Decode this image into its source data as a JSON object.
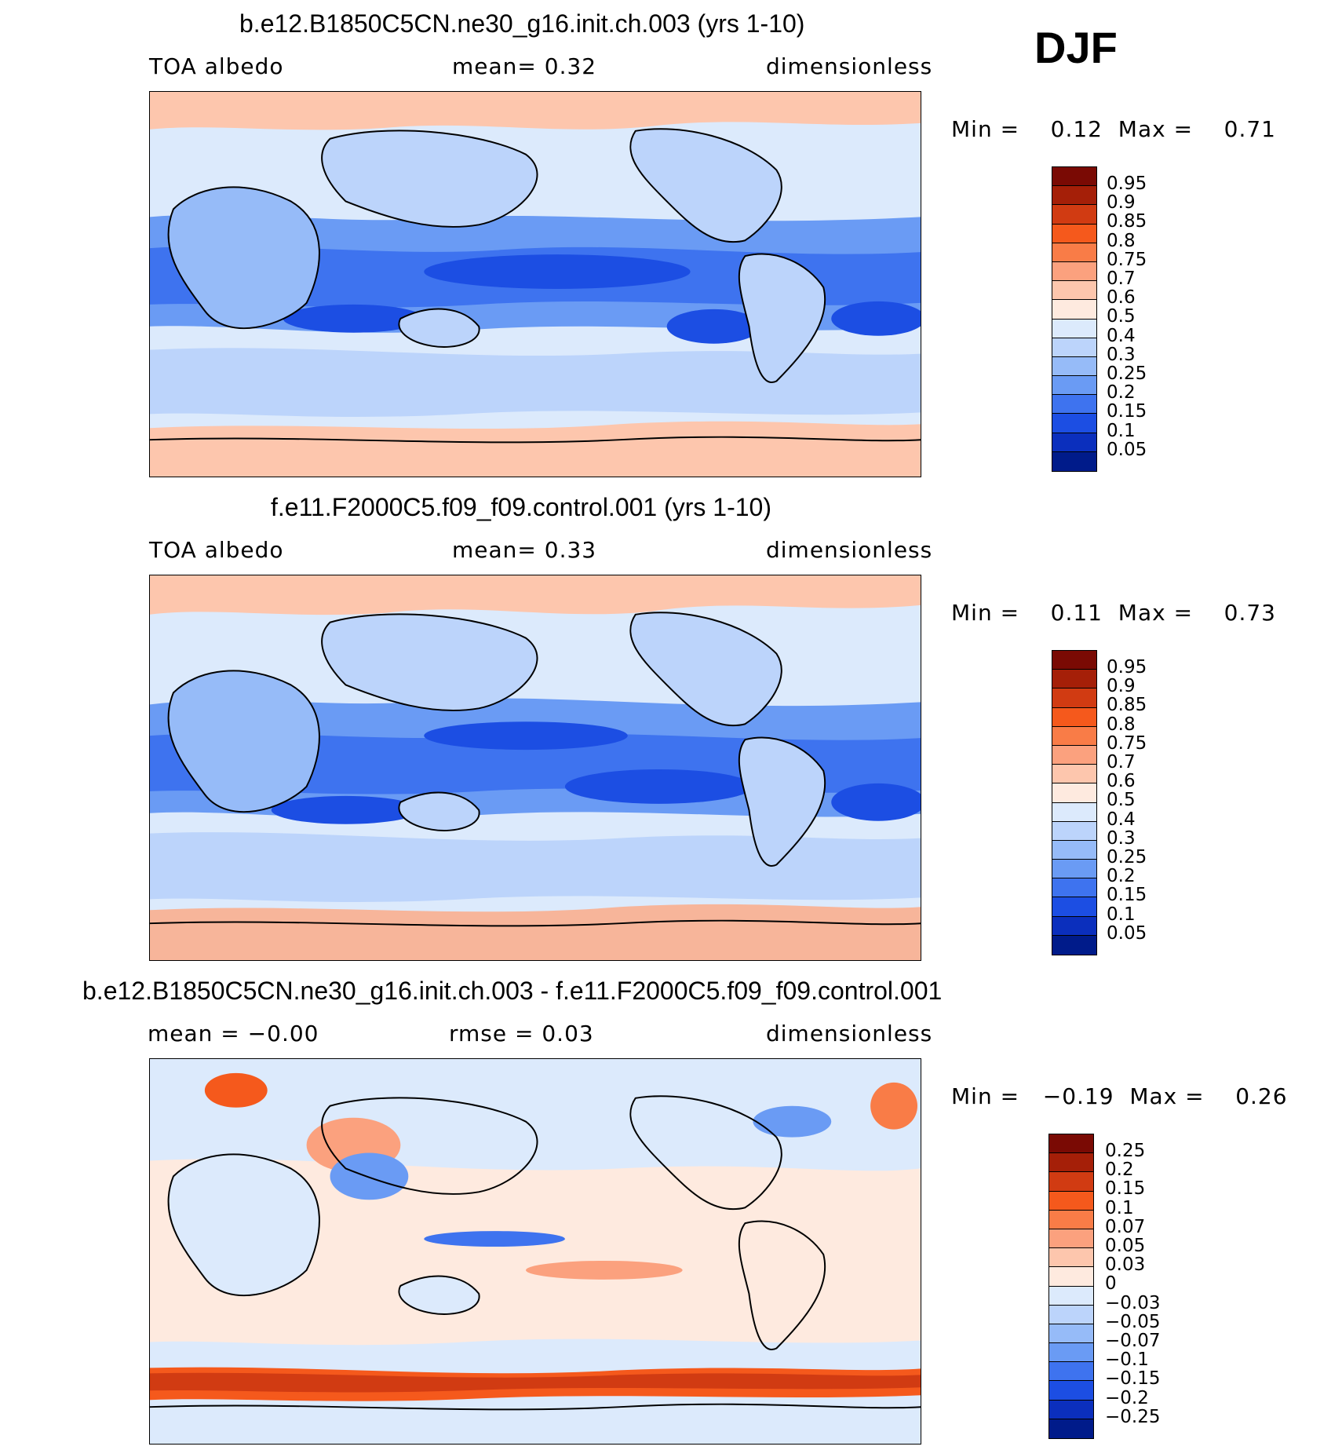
{
  "season": "DJF",
  "panels": [
    {
      "title": "b.e12.B1850C5CN.ne30_g16.init.ch.003 (yrs 1-10)",
      "variable": "TOA albedo",
      "mean_text": "mean=    0.32",
      "units": "dimensionless",
      "stats_text": "Min =    0.12  Max =    0.71",
      "colorbar_labels": [
        "0.95",
        "0.9",
        "0.85",
        "0.8",
        "0.75",
        "0.7",
        "0.6",
        "0.5",
        "0.4",
        "0.3",
        "0.25",
        "0.2",
        "0.15",
        "0.1",
        "0.05"
      ]
    },
    {
      "title": "f.e11.F2000C5.f09_f09.control.001 (yrs 1-10)",
      "variable": "TOA albedo",
      "mean_text": "mean=    0.33",
      "units": "dimensionless",
      "stats_text": "Min =    0.11  Max =    0.73",
      "colorbar_labels": [
        "0.95",
        "0.9",
        "0.85",
        "0.8",
        "0.75",
        "0.7",
        "0.6",
        "0.5",
        "0.4",
        "0.3",
        "0.25",
        "0.2",
        "0.15",
        "0.1",
        "0.05"
      ]
    },
    {
      "title": "b.e12.B1850C5CN.ne30_g16.init.ch.003 - f.e11.F2000C5.f09_f09.control.001",
      "variable": "mean =   −0.00",
      "mean_text": "rmse =    0.03",
      "units": "dimensionless",
      "stats_text": "Min =   −0.19  Max =    0.26",
      "colorbar_labels": [
        "0.25",
        "0.2",
        "0.15",
        "0.1",
        "0.07",
        "0.05",
        "0.03",
        "0",
        "−0.03",
        "−0.05",
        "−0.07",
        "−0.1",
        "−0.15",
        "−0.2",
        "−0.25"
      ]
    }
  ],
  "colors": {
    "colorbar": [
      "#7a0a04",
      "#a51f08",
      "#d13b12",
      "#f5591c",
      "#f97c47",
      "#fba17e",
      "#fdc6ad",
      "#feeadf",
      "#dceafc",
      "#bcd4fb",
      "#96bbf8",
      "#6a9bf4",
      "#3e73ef",
      "#1c4ee3",
      "#0b2fbd",
      "#001b8a"
    ],
    "ice_high": "#f7b59a",
    "land_pale": "#cfe0fb",
    "ocean_mid": "#b7d0fb",
    "low_dark": "#1a46dc"
  }
}
